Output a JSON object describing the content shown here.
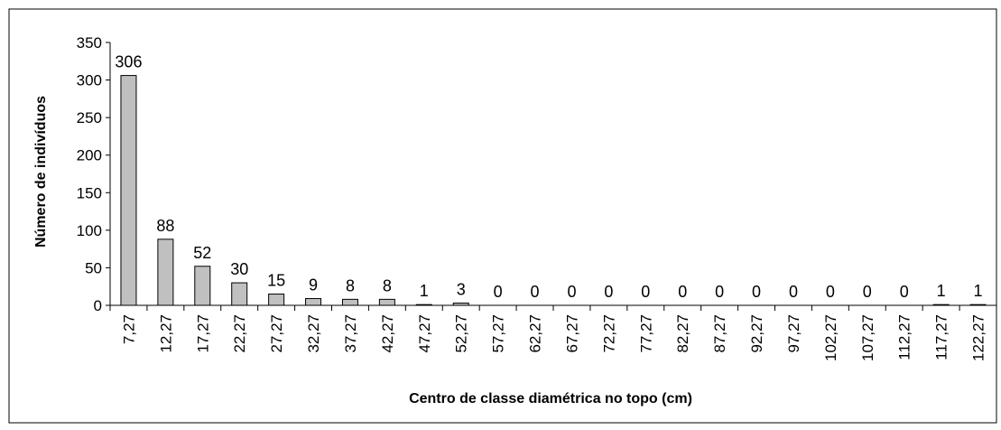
{
  "chart_data": {
    "type": "bar",
    "x_label": "Centro de classe diamétrica no topo (cm)",
    "y_label": "Número de indivíduos",
    "categories": [
      "7,27",
      "12,27",
      "17,27",
      "22,27",
      "27,27",
      "32,27",
      "37,27",
      "42,27",
      "47,27",
      "52,27",
      "57,27",
      "62,27",
      "67,27",
      "72,27",
      "77,27",
      "82,27",
      "87,27",
      "92,27",
      "97,27",
      "102,27",
      "107,27",
      "112,27",
      "117,27",
      "122,27"
    ],
    "values": [
      306,
      88,
      52,
      30,
      15,
      9,
      8,
      8,
      1,
      3,
      0,
      0,
      0,
      0,
      0,
      0,
      0,
      0,
      0,
      0,
      0,
      0,
      1,
      1
    ],
    "color": "#c0c0c0",
    "ylim": [
      0,
      350
    ],
    "yticks": [
      0,
      50,
      100,
      150,
      200,
      250,
      300,
      350
    ],
    "grid": false
  }
}
